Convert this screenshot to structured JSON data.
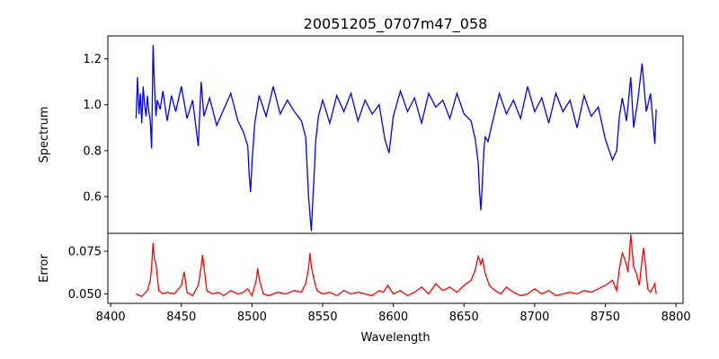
{
  "chart_data": {
    "type": "line",
    "title": "20051205_0707m47_058",
    "xlabel": "Wavelength",
    "x_ticks": [
      8400,
      8450,
      8500,
      8550,
      8600,
      8650,
      8700,
      8750,
      8800
    ],
    "xlim": [
      8398,
      8805
    ],
    "panels": [
      {
        "name": "spectrum",
        "ylabel": "Spectrum",
        "ylim": [
          0.44,
          1.3
        ],
        "y_ticks": [
          0.6,
          0.8,
          1.0,
          1.2
        ],
        "y_tick_labels": [
          "0.6",
          "0.8",
          "1.0",
          "1.2"
        ],
        "color": "#0000ff",
        "x": [
          8418,
          8419,
          8420,
          8421,
          8422,
          8423,
          8424,
          8425,
          8426,
          8427,
          8428,
          8429,
          8430,
          8431,
          8432,
          8433,
          8435,
          8437,
          8440,
          8443,
          8446,
          8450,
          8454,
          8458,
          8462,
          8464,
          8466,
          8470,
          8475,
          8480,
          8485,
          8490,
          8494,
          8497,
          8498,
          8499,
          8500,
          8502,
          8505,
          8510,
          8515,
          8520,
          8525,
          8530,
          8535,
          8538,
          8540,
          8541,
          8542,
          8543,
          8544,
          8545,
          8547,
          8550,
          8555,
          8560,
          8565,
          8570,
          8575,
          8580,
          8585,
          8590,
          8594,
          8597,
          8600,
          8605,
          8610,
          8615,
          8620,
          8625,
          8630,
          8635,
          8640,
          8645,
          8650,
          8655,
          8658,
          8660,
          8661,
          8662,
          8663,
          8664,
          8665,
          8667,
          8670,
          8675,
          8680,
          8685,
          8690,
          8695,
          8700,
          8705,
          8710,
          8715,
          8720,
          8725,
          8730,
          8735,
          8740,
          8745,
          8750,
          8755,
          8758,
          8760,
          8762,
          8765,
          8768,
          8770,
          8773,
          8776,
          8779,
          8782,
          8785,
          8786
        ],
        "y": [
          0.94,
          1.12,
          0.96,
          1.05,
          0.92,
          1.08,
          1.0,
          0.95,
          1.04,
          0.97,
          0.93,
          0.81,
          1.26,
          1.08,
          0.95,
          1.02,
          0.98,
          1.06,
          0.93,
          1.04,
          0.97,
          1.08,
          0.94,
          1.02,
          0.82,
          1.1,
          0.95,
          1.03,
          0.91,
          0.98,
          1.05,
          0.93,
          0.88,
          0.82,
          0.7,
          0.62,
          0.75,
          0.92,
          1.04,
          0.95,
          1.08,
          0.96,
          1.02,
          0.97,
          0.93,
          0.86,
          0.6,
          0.52,
          0.45,
          0.58,
          0.7,
          0.84,
          0.95,
          1.02,
          0.92,
          1.04,
          0.97,
          1.05,
          0.93,
          1.02,
          0.96,
          1.0,
          0.85,
          0.79,
          0.95,
          1.06,
          0.97,
          1.03,
          0.92,
          1.05,
          0.99,
          1.02,
          0.94,
          1.05,
          0.96,
          0.93,
          0.85,
          0.75,
          0.62,
          0.54,
          0.66,
          0.8,
          0.86,
          0.84,
          0.92,
          1.05,
          0.96,
          1.02,
          0.94,
          1.08,
          0.97,
          1.03,
          0.92,
          1.05,
          0.97,
          1.02,
          0.9,
          1.04,
          0.95,
          0.99,
          0.85,
          0.76,
          0.8,
          0.95,
          1.03,
          0.93,
          1.12,
          0.9,
          1.02,
          1.18,
          0.97,
          1.05,
          0.83,
          0.98
        ]
      },
      {
        "name": "error",
        "ylabel": "Error",
        "ylim": [
          0.0445,
          0.0855
        ],
        "y_ticks": [
          0.05,
          0.075
        ],
        "y_tick_labels": [
          "0.050",
          "0.075"
        ],
        "color": "#ff0000",
        "x": [
          8418,
          8422,
          8426,
          8428,
          8429,
          8430,
          8431,
          8432,
          8434,
          8437,
          8440,
          8445,
          8450,
          8452,
          8454,
          8458,
          8462,
          8464,
          8465,
          8466,
          8468,
          8472,
          8476,
          8480,
          8485,
          8490,
          8494,
          8497,
          8500,
          8503,
          8504,
          8505,
          8508,
          8512,
          8518,
          8524,
          8530,
          8535,
          8538,
          8540,
          8541,
          8542,
          8543,
          8544,
          8546,
          8550,
          8555,
          8560,
          8565,
          8570,
          8575,
          8580,
          8585,
          8590,
          8593,
          8596,
          8600,
          8605,
          8610,
          8615,
          8620,
          8625,
          8630,
          8635,
          8640,
          8645,
          8650,
          8655,
          8658,
          8660,
          8661,
          8662,
          8663,
          8665,
          8668,
          8672,
          8676,
          8680,
          8685,
          8690,
          8695,
          8700,
          8705,
          8710,
          8715,
          8720,
          8725,
          8730,
          8735,
          8740,
          8745,
          8750,
          8755,
          8758,
          8760,
          8762,
          8764,
          8766,
          8767,
          8768,
          8770,
          8772,
          8774,
          8776,
          8777,
          8778,
          8780,
          8782,
          8785,
          8786
        ],
        "y": [
          0.05,
          0.0485,
          0.052,
          0.058,
          0.066,
          0.08,
          0.07,
          0.068,
          0.052,
          0.05,
          0.051,
          0.05,
          0.055,
          0.063,
          0.051,
          0.049,
          0.055,
          0.066,
          0.073,
          0.066,
          0.052,
          0.05,
          0.051,
          0.049,
          0.052,
          0.05,
          0.051,
          0.053,
          0.049,
          0.058,
          0.065,
          0.059,
          0.05,
          0.049,
          0.051,
          0.05,
          0.052,
          0.051,
          0.056,
          0.065,
          0.074,
          0.066,
          0.062,
          0.058,
          0.052,
          0.05,
          0.051,
          0.049,
          0.052,
          0.05,
          0.051,
          0.05,
          0.049,
          0.052,
          0.051,
          0.055,
          0.05,
          0.052,
          0.049,
          0.051,
          0.054,
          0.05,
          0.056,
          0.052,
          0.054,
          0.051,
          0.055,
          0.058,
          0.064,
          0.072,
          0.07,
          0.067,
          0.071,
          0.062,
          0.055,
          0.052,
          0.05,
          0.054,
          0.051,
          0.049,
          0.05,
          0.053,
          0.05,
          0.052,
          0.049,
          0.05,
          0.051,
          0.05,
          0.052,
          0.051,
          0.053,
          0.055,
          0.058,
          0.052,
          0.065,
          0.074,
          0.07,
          0.063,
          0.072,
          0.085,
          0.066,
          0.062,
          0.055,
          0.07,
          0.077,
          0.07,
          0.053,
          0.051,
          0.056,
          0.05
        ]
      }
    ]
  }
}
